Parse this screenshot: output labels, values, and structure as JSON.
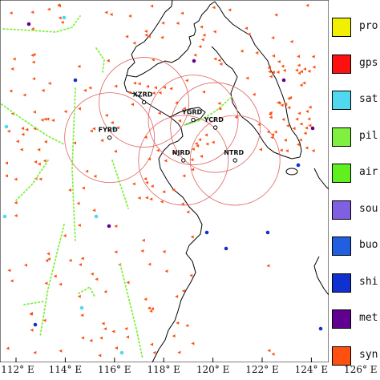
{
  "legend": [
    {
      "label": "pro",
      "color": "#f0f000"
    },
    {
      "label": "gps",
      "color": "#ff1010"
    },
    {
      "label": "sat",
      "color": "#50d8f0"
    },
    {
      "label": "pil",
      "color": "#80f040"
    },
    {
      "label": "air",
      "color": "#60f020"
    },
    {
      "label": "sou",
      "color": "#8060e0"
    },
    {
      "label": "buo",
      "color": "#2060e0"
    },
    {
      "label": "shi",
      "color": "#1030d0"
    },
    {
      "label": "met",
      "color": "#600090"
    },
    {
      "label": "syn",
      "color": "#ff5010"
    }
  ],
  "x_ticks": [
    "112° E",
    "114° E",
    "116° E",
    "118° E",
    "120° E",
    "122° E",
    "124° E",
    "126° E"
  ],
  "stations": [
    {
      "name": "XZRD",
      "lon": 117.2,
      "lat": 34.3
    },
    {
      "name": "YGRD",
      "lon": 119.2,
      "lat": 33.6
    },
    {
      "name": "FYRD",
      "lon": 115.8,
      "lat": 32.9
    },
    {
      "name": "YCRD",
      "lon": 120.1,
      "lat": 33.3
    },
    {
      "name": "NJRD",
      "lon": 118.8,
      "lat": 32.0
    },
    {
      "name": "NTRD",
      "lon": 120.9,
      "lat": 32.0
    }
  ],
  "colors": {
    "synop": "#ff5010",
    "pilot": "#80f040",
    "airep": "#60f020",
    "satellite": "#50d8f0",
    "ship": "#1030d0",
    "metar": "#600090",
    "radar_ring": "#e06060",
    "coast": "#000000"
  }
}
